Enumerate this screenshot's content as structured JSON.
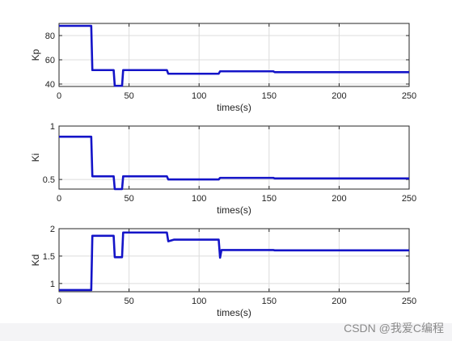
{
  "watermark": "CSDN @我爱C编程",
  "colors": {
    "series": "#1414c8",
    "grid": "#dcdcdc",
    "axes": "#262626"
  },
  "chart_data": [
    {
      "type": "line",
      "title": "",
      "xlabel": "times(s)",
      "ylabel": "Kp",
      "xlim": [
        0,
        250
      ],
      "ylim": [
        38,
        90
      ],
      "xticks": [
        0,
        50,
        100,
        150,
        200,
        250
      ],
      "yticks": [
        40,
        60,
        80
      ],
      "grid": true,
      "series": [
        {
          "x": [
            0,
            23,
            23.8,
            39,
            39.8,
            45,
            45.8,
            77,
            78,
            114,
            115,
            153,
            154,
            250
          ],
          "y": [
            88,
            88,
            51.5,
            51.5,
            38.5,
            38.5,
            51.5,
            51.5,
            48.5,
            48.5,
            50.5,
            50.5,
            49.8,
            49.8
          ]
        }
      ]
    },
    {
      "type": "line",
      "title": "",
      "xlabel": "times(s)",
      "ylabel": "Ki",
      "xlim": [
        0,
        250
      ],
      "ylim": [
        0.41,
        1.0
      ],
      "xticks": [
        0,
        50,
        100,
        150,
        200,
        250
      ],
      "yticks": [
        0.5,
        1
      ],
      "grid": true,
      "series": [
        {
          "x": [
            0,
            23,
            23.8,
            39,
            39.8,
            45,
            45.8,
            77,
            78,
            114,
            115,
            153,
            154,
            250
          ],
          "y": [
            0.9,
            0.9,
            0.53,
            0.53,
            0.41,
            0.41,
            0.53,
            0.53,
            0.5,
            0.5,
            0.515,
            0.515,
            0.51,
            0.51
          ]
        }
      ]
    },
    {
      "type": "line",
      "title": "",
      "xlabel": "times(s)",
      "ylabel": "Kd",
      "xlim": [
        0,
        250
      ],
      "ylim": [
        0.85,
        2.0
      ],
      "xticks": [
        0,
        50,
        100,
        150,
        200,
        250
      ],
      "yticks": [
        1,
        1.5,
        2
      ],
      "grid": true,
      "series": [
        {
          "x": [
            0,
            23,
            23.8,
            39,
            39.8,
            45,
            45.8,
            77,
            78,
            82,
            114,
            115,
            116,
            153,
            154,
            250
          ],
          "y": [
            0.88,
            0.88,
            1.87,
            1.87,
            1.48,
            1.48,
            1.93,
            1.93,
            1.77,
            1.8,
            1.8,
            1.47,
            1.61,
            1.61,
            1.605,
            1.605
          ]
        }
      ]
    }
  ]
}
